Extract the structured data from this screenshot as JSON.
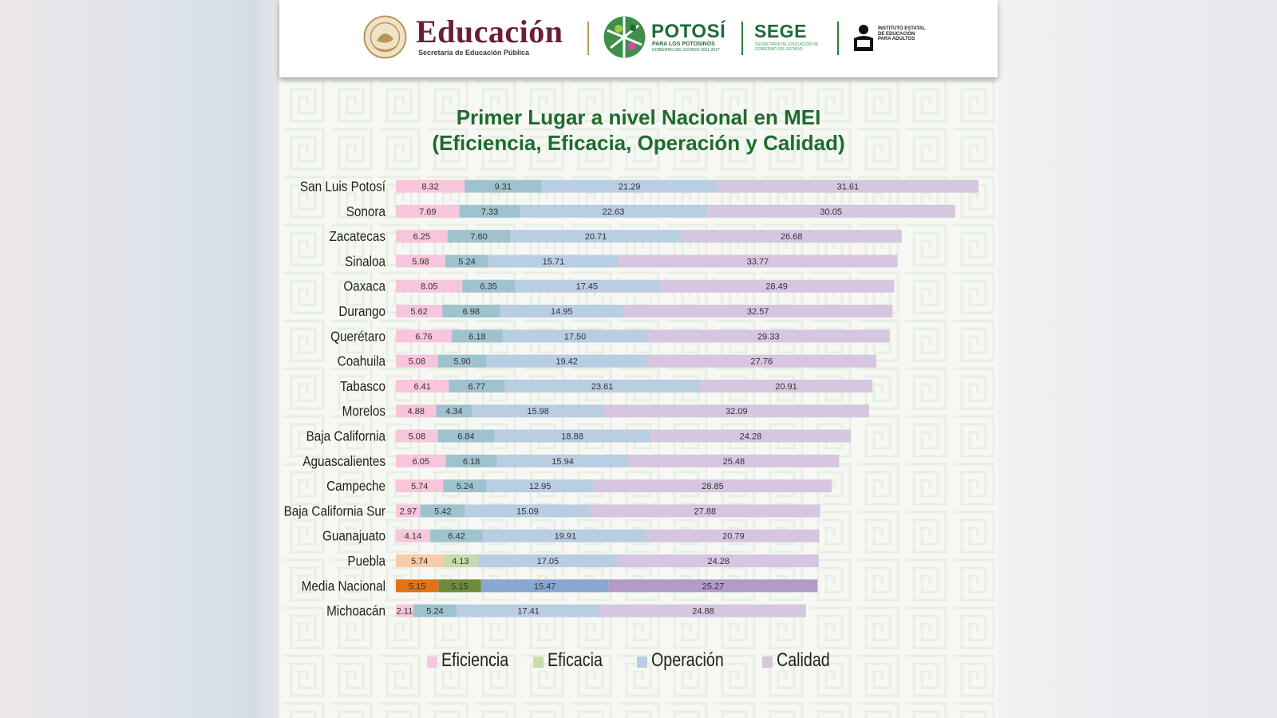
{
  "header": {
    "educacion": "Educación",
    "sep_subtitle": "Secretaría de Educación Pública",
    "potosi": "POTOSÍ",
    "potosi_sub": "PARA LOS POTOSINOS",
    "potosi_sub2": "GOBIERNO DEL ESTADO 2021-2027",
    "sege": "SEGE",
    "sege_sub": "SECRETARÍA DE EDUCACIÓN DE GOBIERNO DEL ESTADO",
    "ieea": "INSTITUTO ESTATAL DE EDUCACIÓN PARA ADULTOS"
  },
  "chart_data": {
    "type": "bar",
    "orientation": "horizontal",
    "stacked": true,
    "title": "Primer Lugar a nivel Nacional en MEI",
    "subtitle": "(Eficiencia, Eficacia, Operación y Calidad)",
    "categories": [
      "San Luis Potosí",
      "Sonora",
      "Zacatecas",
      "Sinaloa",
      "Oaxaca",
      "Durango",
      "Querétaro",
      "Coahuila",
      "Tabasco",
      "Morelos",
      "Baja California",
      "Aguascalientes",
      "Campeche",
      "Baja California Sur",
      "Guanajuato",
      "Puebla",
      "Media Nacional",
      "Michoacán"
    ],
    "series": [
      {
        "name": "Eficiencia",
        "values": [
          8.32,
          7.69,
          6.25,
          5.98,
          8.05,
          5.62,
          6.76,
          5.08,
          6.41,
          4.88,
          5.08,
          6.05,
          5.74,
          2.97,
          4.14,
          5.74,
          5.15,
          2.11
        ]
      },
      {
        "name": "Eficacia",
        "values": [
          9.31,
          7.33,
          7.6,
          5.24,
          6.35,
          6.98,
          6.18,
          5.9,
          6.77,
          4.34,
          6.84,
          6.18,
          5.24,
          5.42,
          6.42,
          4.13,
          5.15,
          5.24
        ]
      },
      {
        "name": "Operación",
        "values": [
          21.29,
          22.63,
          20.71,
          15.71,
          17.45,
          14.95,
          17.5,
          19.42,
          23.61,
          15.98,
          18.88,
          15.94,
          12.95,
          15.09,
          19.91,
          17.05,
          15.47,
          17.41
        ]
      },
      {
        "name": "Calidad",
        "values": [
          31.61,
          30.05,
          26.68,
          33.77,
          28.49,
          32.57,
          29.33,
          27.76,
          20.91,
          32.09,
          24.28,
          25.48,
          28.85,
          27.88,
          20.79,
          24.28,
          25.27,
          24.88
        ]
      }
    ],
    "label_format": "2 decimals",
    "legend_position": "bottom",
    "colors": {
      "default": [
        "#f7c6dc",
        "#9fc3ce",
        "#b9cde3",
        "#d6c6e0"
      ],
      "Puebla": [
        "#f7cda9",
        "#c7dbae",
        "#b9cde3",
        "#d6c6e0"
      ],
      "Media Nacional": [
        "#e07318",
        "#6e8b3d",
        "#8aa7d0",
        "#b39ac9"
      ],
      "legend": [
        "#f7c6dc",
        "#c7dbae",
        "#b9cde3",
        "#d6c6e0"
      ]
    }
  }
}
